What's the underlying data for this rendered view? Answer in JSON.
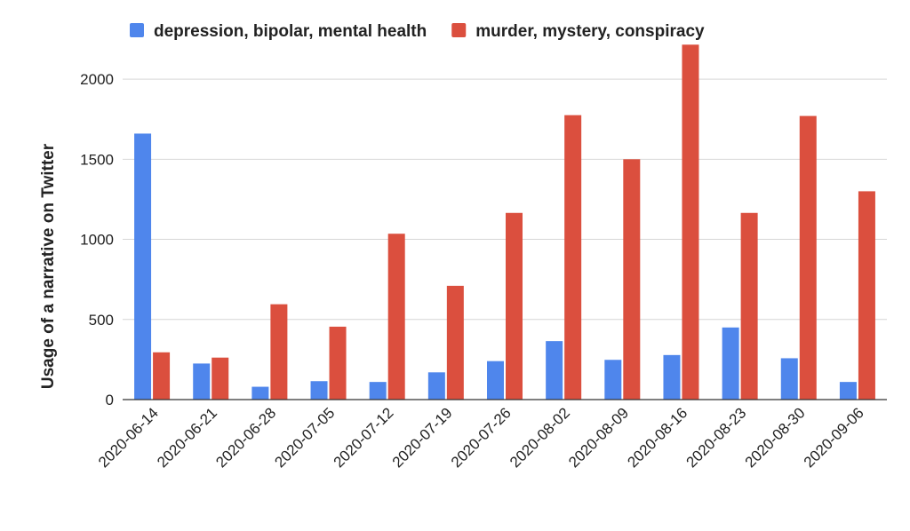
{
  "chart_data": {
    "type": "bar",
    "title": "",
    "xlabel": "",
    "ylabel": "Usage of a narrative on Twitter",
    "ylim": [
      0,
      2200
    ],
    "yticks": [
      0,
      500,
      1000,
      1500,
      2000
    ],
    "grid": true,
    "legend_position": "top",
    "categories": [
      "2020-06-14",
      "2020-06-21",
      "2020-06-28",
      "2020-07-05",
      "2020-07-12",
      "2020-07-19",
      "2020-07-26",
      "2020-08-02",
      "2020-08-09",
      "2020-08-16",
      "2020-08-23",
      "2020-08-30",
      "2020-09-06"
    ],
    "series": [
      {
        "name": "depression, bipolar, mental health",
        "color": "#4f86ec",
        "values": [
          1660,
          225,
          80,
          115,
          110,
          170,
          240,
          365,
          248,
          278,
          450,
          258,
          110
        ]
      },
      {
        "name": "murder, mystery, conspiracy",
        "color": "#db4f3e",
        "values": [
          295,
          262,
          595,
          455,
          1035,
          710,
          1165,
          1775,
          1500,
          2215,
          1165,
          1770,
          1300
        ]
      }
    ]
  }
}
